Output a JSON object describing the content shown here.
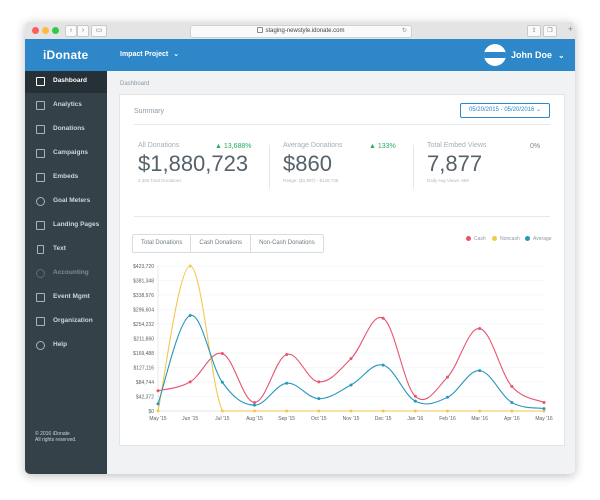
{
  "browser": {
    "url": "staging-newstyle.idonate.com"
  },
  "header": {
    "logo": "iDonate",
    "project": "Impact Project",
    "user_name": "John Doe"
  },
  "sidebar": {
    "items": [
      {
        "label": "Dashboard",
        "icon": "dashboard-icon",
        "active": true
      },
      {
        "label": "Analytics",
        "icon": "analytics-icon"
      },
      {
        "label": "Donations",
        "icon": "gift-icon"
      },
      {
        "label": "Campaigns",
        "icon": "megaphone-icon"
      },
      {
        "label": "Embeds",
        "icon": "puzzle-icon"
      },
      {
        "label": "Goal Meters",
        "icon": "target-icon"
      },
      {
        "label": "Landing Pages",
        "icon": "landing-page-icon"
      },
      {
        "label": "Text",
        "icon": "phone-icon"
      },
      {
        "label": "Accounting",
        "icon": "accounting-icon"
      },
      {
        "label": "Event Mgmt",
        "icon": "ticket-icon"
      },
      {
        "label": "Organization",
        "icon": "organization-icon"
      },
      {
        "label": "Help",
        "icon": "help-icon"
      }
    ],
    "copyright_line1": "© 2016 iDonate",
    "copyright_line2": "All rights reserved."
  },
  "main": {
    "breadcrumb": "Dashboard",
    "summary_label": "Summary",
    "date_range": "05/20/2015 - 05/20/2016",
    "stats": [
      {
        "title": "All Donations",
        "change": "▲ 13,688%",
        "value": "$1,880,723",
        "sub": "2,366 Total Donations"
      },
      {
        "title": "Average Donations",
        "change": "▲ 133%",
        "value": "$860",
        "sub": "Range: ($1,897) - $128,735"
      },
      {
        "title": "Total Embed Views",
        "change": "0%",
        "value": "7,877",
        "sub": "Daily Avg Views: 666"
      }
    ],
    "tabs": [
      "Total Donations",
      "Cash Donations",
      "Non-Cash Donations"
    ],
    "legend": [
      {
        "name": "Cash",
        "color": "#e8546e"
      },
      {
        "name": "Noncash",
        "color": "#f4c64e"
      },
      {
        "name": "Average",
        "color": "#2596be"
      }
    ]
  },
  "chart_data": {
    "type": "line",
    "categories": [
      "May '15",
      "Jun '15",
      "Jul '15",
      "Aug '15",
      "Sep '15",
      "Oct '15",
      "Nov '15",
      "Dec '15",
      "Jan '16",
      "Feb '16",
      "Mar '16",
      "Apr '16",
      "May '16"
    ],
    "yticks": [
      "$423,720",
      "$381,348",
      "$338,976",
      "$296,604",
      "$254,232",
      "$211,860",
      "$169,488",
      "$127,116",
      "$84,744",
      "$42,372",
      "$0"
    ],
    "ylim": [
      0,
      423720
    ],
    "grid": true,
    "series": [
      {
        "name": "Cash",
        "color": "#e8546e",
        "values": [
          59000,
          85000,
          168000,
          25000,
          165000,
          85000,
          153000,
          271000,
          43000,
          99000,
          241000,
          72000,
          25000
        ]
      },
      {
        "name": "Noncash",
        "color": "#f4c64e",
        "values": [
          0,
          423720,
          0,
          0,
          0,
          0,
          0,
          0,
          0,
          0,
          0,
          0,
          0
        ]
      },
      {
        "name": "Average",
        "color": "#2596be",
        "values": [
          21000,
          279000,
          84000,
          17000,
          81000,
          36000,
          76000,
          134000,
          29000,
          40000,
          118000,
          25000,
          7000
        ]
      }
    ]
  }
}
